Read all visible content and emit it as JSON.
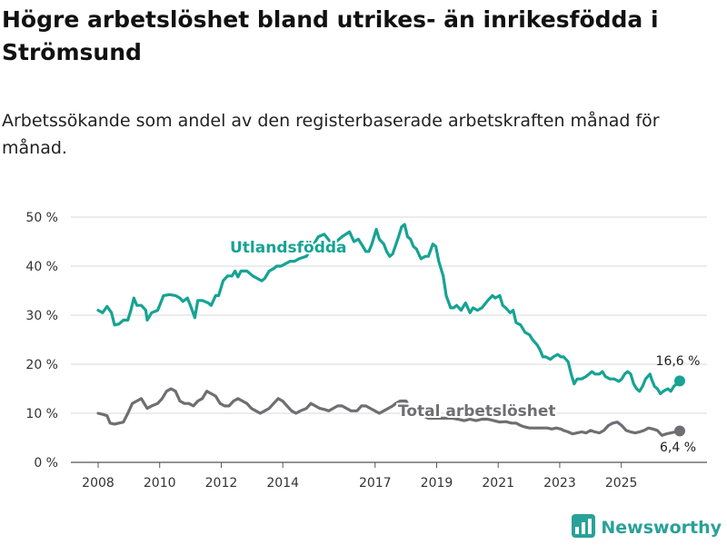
{
  "header": {
    "title": "Högre arbetslöshet bland utrikes- än inrikesfödda i Strömsund",
    "subtitle": "Arbetssökande som andel av den registerbaserade arbetskraften månad för månad."
  },
  "brand": {
    "name": "Newsworthy",
    "icon": "newsworthy-logo-icon"
  },
  "colors": {
    "foreign": "#16a394",
    "total": "#6e6e73",
    "grid": "#d9d9d9"
  },
  "chart_data": {
    "type": "line",
    "title": "Högre arbetslöshet bland utrikes- än inrikesfödda i Strömsund",
    "subtitle": "Arbetssökande som andel av den registerbaserade arbetskraften månad för månad.",
    "xlabel": "",
    "ylabel": "",
    "xlim": [
      2008.0,
      2026.9
    ],
    "ylim": [
      0,
      50
    ],
    "grid": true,
    "yticks": [
      {
        "value": 0,
        "label": "0 %"
      },
      {
        "value": 10,
        "label": "10 %"
      },
      {
        "value": 20,
        "label": "20 %"
      },
      {
        "value": 30,
        "label": "30 %"
      },
      {
        "value": 40,
        "label": "40 %"
      },
      {
        "value": 50,
        "label": "50 %"
      }
    ],
    "xticks": [
      {
        "value": 2008.0,
        "label": "2008"
      },
      {
        "value": 2010.0,
        "label": "2010"
      },
      {
        "value": 2012.0,
        "label": "2012"
      },
      {
        "value": 2014.0,
        "label": "2014"
      },
      {
        "value": 2017.0,
        "label": "2017"
      },
      {
        "value": 2019.0,
        "label": "2019"
      },
      {
        "value": 2021.0,
        "label": "2021"
      },
      {
        "value": 2023.0,
        "label": "2023"
      },
      {
        "value": 2025.0,
        "label": "2025"
      }
    ],
    "series": [
      {
        "name": "Utlandsfödda",
        "label": "Utlandsfödda",
        "end_label": "16,6 %",
        "points": [
          [
            2008.0,
            31
          ],
          [
            2008.15,
            30.5
          ],
          [
            2008.3,
            31.8
          ],
          [
            2008.45,
            30.5
          ],
          [
            2008.55,
            28
          ],
          [
            2008.7,
            28.2
          ],
          [
            2008.85,
            29
          ],
          [
            2009.0,
            29
          ],
          [
            2009.1,
            31
          ],
          [
            2009.2,
            33.5
          ],
          [
            2009.3,
            32
          ],
          [
            2009.45,
            32
          ],
          [
            2009.6,
            31
          ],
          [
            2009.65,
            29
          ],
          [
            2009.8,
            30.5
          ],
          [
            2010.0,
            31
          ],
          [
            2010.2,
            34
          ],
          [
            2010.4,
            34.2
          ],
          [
            2010.6,
            34
          ],
          [
            2010.75,
            33.5
          ],
          [
            2010.85,
            32.8
          ],
          [
            2011.0,
            33.5
          ],
          [
            2011.1,
            32
          ],
          [
            2011.25,
            29.5
          ],
          [
            2011.35,
            33
          ],
          [
            2011.5,
            33
          ],
          [
            2011.7,
            32.5
          ],
          [
            2011.8,
            32
          ],
          [
            2011.95,
            34
          ],
          [
            2012.05,
            34
          ],
          [
            2012.2,
            37
          ],
          [
            2012.35,
            38
          ],
          [
            2012.5,
            38
          ],
          [
            2012.6,
            39
          ],
          [
            2012.7,
            37.8
          ],
          [
            2012.8,
            39
          ],
          [
            2013.0,
            39
          ],
          [
            2013.2,
            38
          ],
          [
            2013.35,
            37.5
          ],
          [
            2013.5,
            37
          ],
          [
            2013.6,
            37.5
          ],
          [
            2013.75,
            39
          ],
          [
            2013.9,
            39.5
          ],
          [
            2014.0,
            40
          ],
          [
            2014.15,
            40
          ],
          [
            2014.3,
            40.5
          ],
          [
            2014.45,
            41
          ],
          [
            2014.6,
            41
          ],
          [
            2014.75,
            41.5
          ],
          [
            2015.0,
            42
          ],
          [
            2015.2,
            44
          ],
          [
            2015.4,
            46
          ],
          [
            2015.6,
            46.5
          ],
          [
            2015.8,
            45
          ],
          [
            2016.0,
            45
          ],
          [
            2016.2,
            46
          ],
          [
            2016.45,
            47
          ],
          [
            2016.6,
            45
          ],
          [
            2016.75,
            45.5
          ],
          [
            2016.9,
            44
          ],
          [
            2017.0,
            43
          ],
          [
            2017.1,
            43
          ],
          [
            2017.2,
            44.5
          ],
          [
            2017.35,
            47.5
          ],
          [
            2017.45,
            45.5
          ],
          [
            2017.6,
            44.5
          ],
          [
            2017.7,
            43
          ],
          [
            2017.8,
            42
          ],
          [
            2017.9,
            42.5
          ],
          [
            2018.1,
            46
          ],
          [
            2018.2,
            48
          ],
          [
            2018.3,
            48.5
          ],
          [
            2018.4,
            46
          ],
          [
            2018.5,
            45.5
          ],
          [
            2018.6,
            44
          ],
          [
            2018.7,
            43.5
          ],
          [
            2018.85,
            41.5
          ],
          [
            2019.0,
            42
          ],
          [
            2019.1,
            42
          ],
          [
            2019.25,
            44.5
          ],
          [
            2019.35,
            44
          ],
          [
            2019.45,
            41
          ],
          [
            2019.6,
            38
          ],
          [
            2019.7,
            34
          ],
          [
            2019.85,
            31.5
          ],
          [
            2019.95,
            31.5
          ],
          [
            2020.05,
            32
          ],
          [
            2020.2,
            31
          ],
          [
            2020.35,
            32.5
          ],
          [
            2020.5,
            30.5
          ],
          [
            2020.6,
            31.5
          ],
          [
            2020.75,
            31
          ],
          [
            2020.9,
            31.5
          ],
          [
            2021.1,
            33
          ],
          [
            2021.25,
            34
          ],
          [
            2021.35,
            33.5
          ],
          [
            2021.5,
            34
          ],
          [
            2021.6,
            32
          ],
          [
            2021.7,
            31.5
          ],
          [
            2021.85,
            30.5
          ],
          [
            2021.95,
            31
          ],
          [
            2022.05,
            28.5
          ],
          [
            2022.2,
            28
          ],
          [
            2022.35,
            26.5
          ],
          [
            2022.5,
            26
          ],
          [
            2022.6,
            25
          ],
          [
            2022.75,
            24
          ],
          [
            2022.85,
            23
          ],
          [
            2022.95,
            21.5
          ],
          [
            2023.05,
            21.5
          ],
          [
            2023.2,
            21
          ],
          [
            2023.3,
            21.5
          ],
          [
            2023.45,
            22
          ],
          [
            2023.55,
            21.5
          ],
          [
            2023.65,
            21.5
          ],
          [
            2023.8,
            20.5
          ],
          [
            2023.9,
            18
          ],
          [
            2024.0,
            16
          ],
          [
            2024.1,
            17
          ],
          [
            2024.25,
            17
          ],
          [
            2024.4,
            17.5
          ],
          [
            2024.5,
            18
          ],
          [
            2024.6,
            18.5
          ],
          [
            2024.7,
            18
          ],
          [
            2024.85,
            18
          ],
          [
            2024.95,
            18.5
          ],
          [
            2025.05,
            17.5
          ],
          [
            2025.2,
            17
          ],
          [
            2025.35,
            17
          ],
          [
            2025.5,
            16.5
          ],
          [
            2025.6,
            17
          ],
          [
            2025.7,
            18
          ],
          [
            2025.8,
            18.5
          ],
          [
            2025.9,
            18
          ],
          [
            2026.0,
            16
          ],
          [
            2026.1,
            15
          ],
          [
            2026.2,
            14.5
          ],
          [
            2026.3,
            15.5
          ],
          [
            2026.4,
            17
          ],
          [
            2026.55,
            18
          ],
          [
            2026.6,
            17
          ],
          [
            2026.7,
            15.5
          ],
          [
            2026.8,
            15
          ],
          [
            2026.9,
            14
          ],
          [
            2027.0,
            14.5
          ],
          [
            2027.15,
            15
          ],
          [
            2027.25,
            14.5
          ],
          [
            2027.35,
            15.5
          ],
          [
            2027.45,
            16
          ],
          [
            2027.55,
            16.6
          ]
        ]
      },
      {
        "name": "Total arbetslöshet",
        "label": "Total arbetslöshet",
        "end_label": "6,4 %",
        "points": [
          [
            2008.0,
            10
          ],
          [
            2008.15,
            9.8
          ],
          [
            2008.3,
            9.5
          ],
          [
            2008.4,
            8
          ],
          [
            2008.55,
            7.8
          ],
          [
            2008.7,
            8
          ],
          [
            2008.85,
            8.2
          ],
          [
            2009.0,
            10
          ],
          [
            2009.15,
            12
          ],
          [
            2009.3,
            12.5
          ],
          [
            2009.45,
            13
          ],
          [
            2009.55,
            12
          ],
          [
            2009.65,
            11
          ],
          [
            2009.8,
            11.5
          ],
          [
            2010.0,
            12
          ],
          [
            2010.15,
            13
          ],
          [
            2010.3,
            14.5
          ],
          [
            2010.45,
            15
          ],
          [
            2010.6,
            14.5
          ],
          [
            2010.75,
            12.5
          ],
          [
            2010.9,
            12
          ],
          [
            2011.05,
            12
          ],
          [
            2011.2,
            11.5
          ],
          [
            2011.35,
            12.5
          ],
          [
            2011.5,
            13
          ],
          [
            2011.65,
            14.5
          ],
          [
            2011.8,
            14
          ],
          [
            2011.95,
            13.5
          ],
          [
            2012.1,
            12
          ],
          [
            2012.25,
            11.5
          ],
          [
            2012.4,
            11.5
          ],
          [
            2012.55,
            12.5
          ],
          [
            2012.7,
            13
          ],
          [
            2012.85,
            12.5
          ],
          [
            2013.0,
            12
          ],
          [
            2013.15,
            11
          ],
          [
            2013.3,
            10.5
          ],
          [
            2013.45,
            10
          ],
          [
            2013.6,
            10.5
          ],
          [
            2013.75,
            11
          ],
          [
            2013.9,
            12
          ],
          [
            2014.05,
            13
          ],
          [
            2014.2,
            12.5
          ],
          [
            2014.35,
            11.5
          ],
          [
            2014.5,
            10.5
          ],
          [
            2014.65,
            10
          ],
          [
            2014.8,
            10.5
          ],
          [
            2015.0,
            11
          ],
          [
            2015.15,
            12
          ],
          [
            2015.3,
            11.5
          ],
          [
            2015.45,
            11
          ],
          [
            2015.6,
            10.8
          ],
          [
            2015.75,
            10.5
          ],
          [
            2015.9,
            11
          ],
          [
            2016.05,
            11.5
          ],
          [
            2016.2,
            11.5
          ],
          [
            2016.35,
            11
          ],
          [
            2016.5,
            10.5
          ],
          [
            2016.7,
            10.5
          ],
          [
            2016.85,
            11.5
          ],
          [
            2017.0,
            11.5
          ],
          [
            2017.15,
            11
          ],
          [
            2017.3,
            10.5
          ],
          [
            2017.45,
            10
          ],
          [
            2017.6,
            10.5
          ],
          [
            2017.75,
            11
          ],
          [
            2017.9,
            11.5
          ],
          [
            2018.0,
            12
          ],
          [
            2018.15,
            12.5
          ],
          [
            2018.35,
            12.5
          ],
          [
            2018.5,
            11
          ],
          [
            2018.7,
            10
          ],
          [
            2018.9,
            9.5
          ],
          [
            2019.1,
            9
          ],
          [
            2019.3,
            9
          ],
          [
            2019.5,
            9
          ],
          [
            2019.7,
            9
          ],
          [
            2019.9,
            9
          ],
          [
            2020.1,
            8.8
          ],
          [
            2020.3,
            8.5
          ],
          [
            2020.5,
            8.8
          ],
          [
            2020.7,
            8.5
          ],
          [
            2020.9,
            8.8
          ],
          [
            2021.1,
            8.8
          ],
          [
            2021.3,
            8.5
          ],
          [
            2021.5,
            8.2
          ],
          [
            2021.7,
            8.3
          ],
          [
            2021.9,
            8
          ],
          [
            2022.05,
            8
          ],
          [
            2022.2,
            7.5
          ],
          [
            2022.35,
            7.2
          ],
          [
            2022.5,
            7
          ],
          [
            2022.65,
            7
          ],
          [
            2022.8,
            7
          ],
          [
            2022.95,
            7
          ],
          [
            2023.1,
            7
          ],
          [
            2023.25,
            6.8
          ],
          [
            2023.4,
            7
          ],
          [
            2023.55,
            6.8
          ],
          [
            2023.65,
            6.5
          ],
          [
            2023.8,
            6.2
          ],
          [
            2023.95,
            5.8
          ],
          [
            2024.1,
            6
          ],
          [
            2024.25,
            6.2
          ],
          [
            2024.4,
            6
          ],
          [
            2024.55,
            6.5
          ],
          [
            2024.7,
            6.2
          ],
          [
            2024.85,
            6
          ],
          [
            2025.0,
            6.5
          ],
          [
            2025.15,
            7.5
          ],
          [
            2025.3,
            8
          ],
          [
            2025.45,
            8.2
          ],
          [
            2025.6,
            7.5
          ],
          [
            2025.75,
            6.5
          ],
          [
            2025.9,
            6.2
          ],
          [
            2026.05,
            6
          ],
          [
            2026.2,
            6.2
          ],
          [
            2026.35,
            6.5
          ],
          [
            2026.5,
            7
          ],
          [
            2026.65,
            6.8
          ],
          [
            2026.8,
            6.5
          ],
          [
            2026.95,
            5.5
          ],
          [
            2027.1,
            5.8
          ],
          [
            2027.25,
            6
          ],
          [
            2027.4,
            6.2
          ],
          [
            2027.55,
            6.4
          ]
        ]
      }
    ]
  }
}
